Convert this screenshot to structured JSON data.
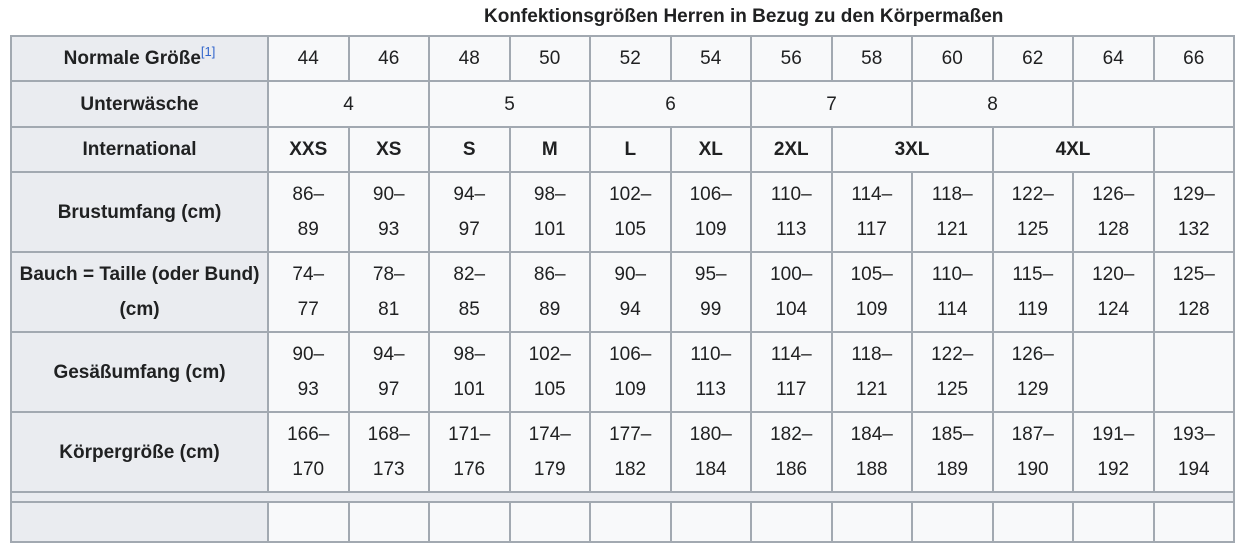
{
  "caption": "Konfektionsgrößen Herren in Bezug zu den Körpermaßen",
  "colors": {
    "header_bg": "#eaecf0",
    "cell_bg": "#f8f9fa",
    "border": "#a2a9b1",
    "link": "#3366cc"
  },
  "rows": [
    {
      "header": "Normale Größe",
      "ref": "[1]",
      "bold": false,
      "cells": [
        {
          "text": "44"
        },
        {
          "text": "46"
        },
        {
          "text": "48"
        },
        {
          "text": "50"
        },
        {
          "text": "52"
        },
        {
          "text": "54"
        },
        {
          "text": "56"
        },
        {
          "text": "58"
        },
        {
          "text": "60"
        },
        {
          "text": "62"
        },
        {
          "text": "64"
        },
        {
          "text": "66"
        }
      ]
    },
    {
      "header": "Unterwäsche",
      "bold": false,
      "cells": [
        {
          "text": "4",
          "span": 2
        },
        {
          "text": "5",
          "span": 2
        },
        {
          "text": "6",
          "span": 2
        },
        {
          "text": "7",
          "span": 2
        },
        {
          "text": "8",
          "span": 2
        },
        {
          "text": "",
          "span": 2
        }
      ]
    },
    {
      "header": "International",
      "bold": true,
      "cells": [
        {
          "text": "XXS"
        },
        {
          "text": "XS"
        },
        {
          "text": "S"
        },
        {
          "text": "M"
        },
        {
          "text": "L"
        },
        {
          "text": "XL"
        },
        {
          "text": "2XL"
        },
        {
          "text": "3XL",
          "span": 2
        },
        {
          "text": "4XL",
          "span": 2
        },
        {
          "text": ""
        }
      ]
    },
    {
      "header": "Brustumfang (cm)",
      "bold": false,
      "cells": [
        {
          "text": "86–89"
        },
        {
          "text": "90–93"
        },
        {
          "text": "94–97"
        },
        {
          "text": "98–101"
        },
        {
          "text": "102–105"
        },
        {
          "text": "106–109"
        },
        {
          "text": "110–113"
        },
        {
          "text": "114–117"
        },
        {
          "text": "118–121"
        },
        {
          "text": "122–125"
        },
        {
          "text": "126–128"
        },
        {
          "text": "129–132"
        }
      ]
    },
    {
      "header": "Bauch = Taille (oder Bund) (cm)",
      "bold": false,
      "cells": [
        {
          "text": "74–77"
        },
        {
          "text": "78–81"
        },
        {
          "text": "82–85"
        },
        {
          "text": "86–89"
        },
        {
          "text": "90–94"
        },
        {
          "text": "95–99"
        },
        {
          "text": "100–104"
        },
        {
          "text": "105–109"
        },
        {
          "text": "110–114"
        },
        {
          "text": "115–119"
        },
        {
          "text": "120–124"
        },
        {
          "text": "125–128"
        }
      ]
    },
    {
      "header": "Gesäßumfang (cm)",
      "bold": false,
      "cells": [
        {
          "text": "90–93"
        },
        {
          "text": "94–97"
        },
        {
          "text": "98–101"
        },
        {
          "text": "102–105"
        },
        {
          "text": "106–109"
        },
        {
          "text": "110–113"
        },
        {
          "text": "114–117"
        },
        {
          "text": "118–121"
        },
        {
          "text": "122–125"
        },
        {
          "text": "126–129"
        },
        {
          "text": ""
        },
        {
          "text": ""
        }
      ]
    },
    {
      "header": "Körpergröße (cm)",
      "bold": false,
      "cells": [
        {
          "text": "166–170"
        },
        {
          "text": "168–173"
        },
        {
          "text": "171–176"
        },
        {
          "text": "174–179"
        },
        {
          "text": "177–182"
        },
        {
          "text": "180–184"
        },
        {
          "text": "182–186"
        },
        {
          "text": "184–188"
        },
        {
          "text": "185–189"
        },
        {
          "text": "187–190"
        },
        {
          "text": "191–192"
        },
        {
          "text": "193–194"
        }
      ]
    }
  ]
}
